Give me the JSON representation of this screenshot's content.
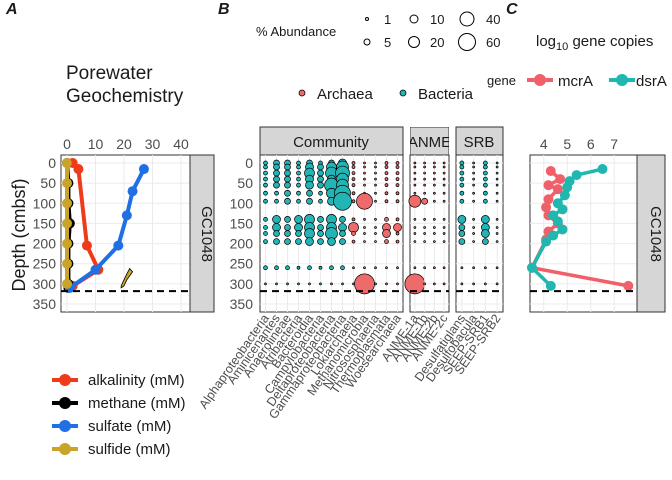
{
  "panel_labels": {
    "a": "A",
    "b": "B",
    "c": "C"
  },
  "panel_a": {
    "title_line1": "Porewater",
    "title_line2": "Geochemistry",
    "ylabel": "Depth (cmbsf)",
    "facet": "GC1048",
    "legend": [
      {
        "label": "alkalinity (mM)",
        "color": "#f03b1a"
      },
      {
        "label": "methane (mM)",
        "color": "#000000"
      },
      {
        "label": "sulfate (mM)",
        "color": "#1f6fe5"
      },
      {
        "label": "sulfide (mM)",
        "color": "#c9a42a"
      }
    ]
  },
  "panel_b": {
    "size_legend_title": "% Abundance",
    "size_legend_values": [
      "1",
      "5",
      "10",
      "20",
      "40",
      "60"
    ],
    "color_legend": [
      {
        "label": "Archaea",
        "color": "#ef6a6a"
      },
      {
        "label": "Bacteria",
        "color": "#23b5b5"
      }
    ],
    "strips": [
      "Community",
      "ANME",
      "SRB"
    ]
  },
  "panel_c": {
    "title": "log",
    "title_sub": "10",
    "title_rest": " gene copies",
    "legend_title": "gene",
    "legend": [
      {
        "label": "mcrA",
        "color": "#f0606a"
      },
      {
        "label": "dsrA",
        "color": "#1fb7b0"
      }
    ],
    "facet": "GC1048"
  },
  "chart_data": [
    {
      "type": "line",
      "panel": "A",
      "title": "Porewater Geochemistry",
      "xlim": [
        0,
        40
      ],
      "x_ticks": [
        "0",
        "10",
        "20",
        "30",
        "40"
      ],
      "ylim": [
        350,
        0
      ],
      "y_ticks": [
        "0",
        "50",
        "100",
        "150",
        "200",
        "250",
        "300",
        "350"
      ],
      "ylabel": "Depth (cmbsf)",
      "reference_depth": 318,
      "series": [
        {
          "name": "alkalinity (mM)",
          "color": "#f03b1a",
          "points": [
            [
              2,
              0
            ],
            [
              4,
              15
            ],
            [
              7,
              205
            ],
            [
              11,
              265
            ],
            [
              2,
              305
            ]
          ]
        },
        {
          "name": "methane (mM)",
          "color": "#000000",
          "points": [
            [
              0,
              0
            ],
            [
              0.5,
              50
            ],
            [
              0.5,
              100
            ],
            [
              1,
              150
            ],
            [
              0.5,
              200
            ],
            [
              0.5,
              250
            ],
            [
              0.5,
              300
            ],
            [
              0.5,
              310
            ]
          ]
        },
        {
          "name": "sulfate (mM)",
          "color": "#1f6fe5",
          "points": [
            [
              27,
              15
            ],
            [
              23,
              70
            ],
            [
              21,
              130
            ],
            [
              18,
              205
            ],
            [
              10,
              265
            ],
            [
              1,
              310
            ]
          ]
        },
        {
          "name": "sulfide (mM)",
          "color": "#c9a42a",
          "outline": [
            [
              19,
              305
            ],
            [
              20,
              290
            ],
            [
              21,
              275
            ],
            [
              22,
              262
            ],
            [
              23,
              270
            ],
            [
              21,
              290
            ],
            [
              20,
              305
            ],
            [
              19,
              310
            ]
          ],
          "points": [
            [
              0,
              0
            ],
            [
              0,
              50
            ],
            [
              0,
              100
            ],
            [
              0,
              150
            ],
            [
              0,
              200
            ],
            [
              0,
              250
            ],
            [
              0,
              300
            ]
          ]
        }
      ]
    },
    {
      "type": "scatter",
      "panel": "B",
      "ylim": [
        350,
        0
      ],
      "y_ticks": [
        "0",
        "50",
        "100",
        "150",
        "200",
        "250",
        "300",
        "350"
      ],
      "reference_depth": 318,
      "facets": [
        {
          "name": "Community",
          "taxa": [
            "Alphaproteobacteria",
            "Aminicenantes",
            "Anaerolineae",
            "Atribacteria",
            "Bacteroidia",
            "Campylobacteria",
            "Deltaproteobacteria",
            "Gammaproteobacteria",
            "Lokiarchaeia",
            "Methanomicrobia",
            "Nitrososphaeria",
            "Thermoplasmata",
            "Woesearchaeia"
          ]
        },
        {
          "name": "ANME",
          "taxa": [
            "ANME-1a",
            "ANME-1b",
            "ANME-2b",
            "ANME-2c"
          ]
        },
        {
          "name": "SRB",
          "taxa": [
            "Desulfatiglans",
            "Desulfobacula",
            "SEEP-SRB1",
            "SEEP-SRB2"
          ]
        }
      ],
      "depths": [
        0,
        10,
        25,
        40,
        55,
        75,
        95,
        140,
        160,
        175,
        195,
        260,
        300
      ]
    },
    {
      "type": "line",
      "panel": "C",
      "xlim": [
        3.5,
        7.8
      ],
      "x_ticks": [
        "4",
        "5",
        "6",
        "7"
      ],
      "ylim": [
        350,
        0
      ],
      "reference_depth": 318,
      "series": [
        {
          "name": "mcrA",
          "color": "#f0606a",
          "points": [
            [
              4.3,
              20
            ],
            [
              4.7,
              40
            ],
            [
              4.2,
              55
            ],
            [
              4.6,
              65
            ],
            [
              4.2,
              90
            ],
            [
              4.1,
              110
            ],
            [
              4.2,
              130
            ],
            [
              4.6,
              150
            ],
            [
              4.2,
              170
            ],
            [
              4.1,
              190
            ],
            [
              3.5,
              260
            ],
            [
              7.6,
              305
            ]
          ]
        },
        {
          "name": "dsrA",
          "color": "#1fb7b0",
          "points": [
            [
              6.5,
              15
            ],
            [
              5.4,
              30
            ],
            [
              5.1,
              45
            ],
            [
              5.0,
              60
            ],
            [
              4.9,
              80
            ],
            [
              4.6,
              100
            ],
            [
              4.8,
              115
            ],
            [
              4.4,
              130
            ],
            [
              4.6,
              145
            ],
            [
              4.8,
              165
            ],
            [
              4.4,
              180
            ],
            [
              4.1,
              195
            ],
            [
              3.5,
              260
            ],
            [
              4.3,
              305
            ]
          ]
        }
      ]
    }
  ]
}
